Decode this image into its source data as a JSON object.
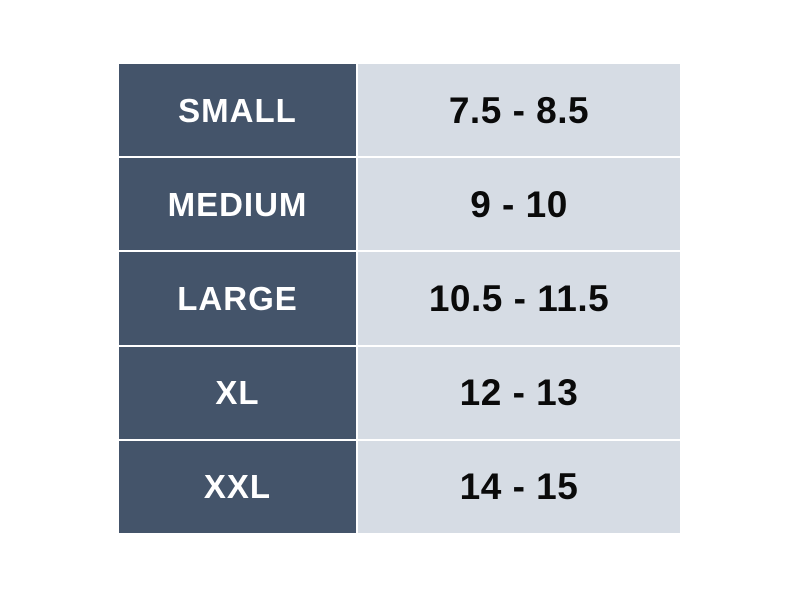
{
  "table": {
    "rows": [
      {
        "size": "SMALL",
        "range": "7.5 - 8.5"
      },
      {
        "size": "MEDIUM",
        "range": "9 - 10"
      },
      {
        "size": "LARGE",
        "range": "10.5 - 11.5"
      },
      {
        "size": "XL",
        "range": "12 - 13"
      },
      {
        "size": "XXL",
        "range": "14 - 15"
      }
    ],
    "colors": {
      "size_cell_bg": "#44546A",
      "size_cell_text": "#FFFFFF",
      "range_cell_bg": "#D6DCE4",
      "range_cell_text": "#0A0A0A",
      "divider": "#FFFFFF",
      "page_bg": "#FFFFFF"
    }
  },
  "chart_data": {
    "type": "table",
    "title": "",
    "has_header_row": false,
    "rows": [
      [
        "SMALL",
        "7.5 - 8.5"
      ],
      [
        "MEDIUM",
        "9 - 10"
      ],
      [
        "LARGE",
        "10.5 - 11.5"
      ],
      [
        "XL",
        "12 - 13"
      ],
      [
        "XXL",
        "14 - 15"
      ]
    ],
    "ranges_numeric": [
      {
        "size": "SMALL",
        "min": 7.5,
        "max": 8.5
      },
      {
        "size": "MEDIUM",
        "min": 9,
        "max": 10
      },
      {
        "size": "LARGE",
        "min": 10.5,
        "max": 11.5
      },
      {
        "size": "XL",
        "min": 12,
        "max": 13
      },
      {
        "size": "XXL",
        "min": 14,
        "max": 15
      }
    ],
    "layout": {
      "grid": "white 2px dividers between cells",
      "left_column_style": "dark slate fill, white bold centered text",
      "right_column_style": "light gray-blue fill, black bold centered text"
    }
  }
}
